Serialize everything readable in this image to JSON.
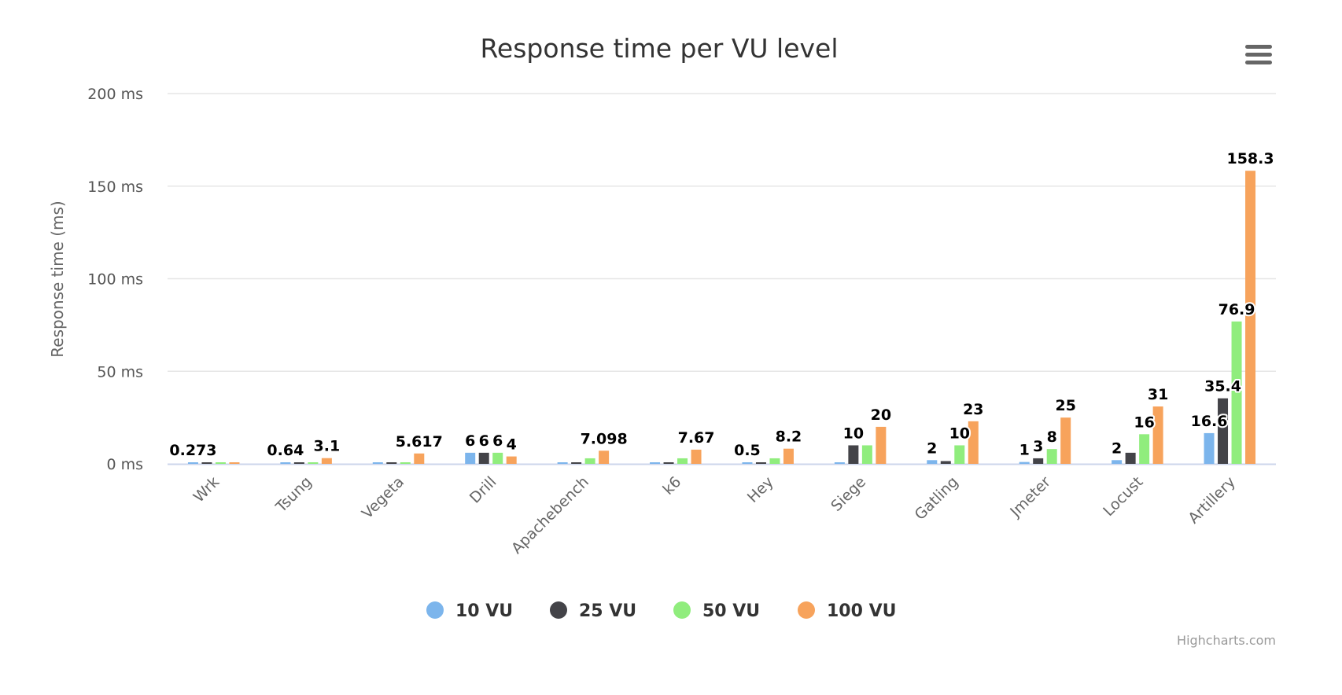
{
  "chart_data": {
    "type": "bar",
    "title": "Response time per VU level",
    "ylabel": "Response time (ms)",
    "xlabel": "",
    "ylim": [
      0,
      200
    ],
    "yticks": [
      0,
      50,
      100,
      150,
      200
    ],
    "ytick_suffix": " ms",
    "grid": true,
    "legend_position": "bottom",
    "categories": [
      "Wrk",
      "Tsung",
      "Vegeta",
      "Drill",
      "Apachebench",
      "k6",
      "Hey",
      "Siege",
      "Gatling",
      "Jmeter",
      "Locust",
      "Artillery"
    ],
    "series": [
      {
        "name": "10 VU",
        "color": "#7cb5ec",
        "values": [
          0.273,
          0.64,
          0.5,
          6,
          0.5,
          0.5,
          0.5,
          0.5,
          2,
          1,
          2,
          16.6
        ],
        "labels_shown": [
          true,
          true,
          false,
          true,
          false,
          false,
          true,
          false,
          true,
          true,
          true,
          true
        ]
      },
      {
        "name": "25 VU",
        "color": "#434348",
        "values": [
          0.3,
          0.7,
          0.5,
          6,
          0.5,
          0.5,
          0.5,
          10,
          1.5,
          3,
          6,
          35.4
        ],
        "labels_shown": [
          false,
          false,
          false,
          true,
          false,
          false,
          false,
          true,
          false,
          true,
          false,
          true
        ]
      },
      {
        "name": "50 VU",
        "color": "#90ed7d",
        "values": [
          0.3,
          0.7,
          0.5,
          6,
          3,
          3,
          3,
          10,
          10,
          8,
          16,
          76.9
        ],
        "labels_shown": [
          false,
          false,
          false,
          true,
          false,
          false,
          false,
          false,
          true,
          true,
          true,
          true
        ]
      },
      {
        "name": "100 VU",
        "color": "#f7a35c",
        "values": [
          0.3,
          3.1,
          5.617,
          4,
          7.098,
          7.67,
          8.2,
          20,
          23,
          25,
          31,
          158.3
        ],
        "labels_shown": [
          false,
          true,
          true,
          true,
          true,
          true,
          true,
          true,
          true,
          true,
          true,
          true
        ]
      }
    ]
  },
  "credits": "Highcharts.com",
  "menu_icon": "hamburger-menu-icon"
}
